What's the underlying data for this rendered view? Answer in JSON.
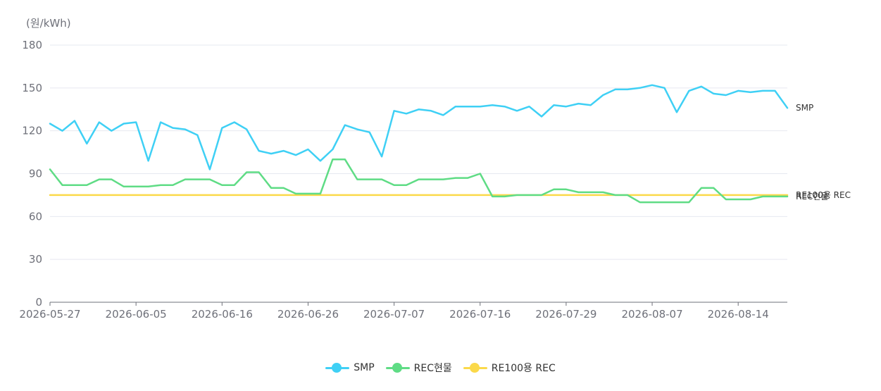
{
  "chart_data": {
    "type": "line",
    "unit_label": "(원/kWh)",
    "ylim": [
      0,
      180
    ],
    "yticks": [
      0,
      30,
      60,
      90,
      120,
      150,
      180
    ],
    "grid": true,
    "legend_position": "bottom-center",
    "x_tick_labels": [
      "2026-05-27",
      "2026-06-05",
      "2026-06-16",
      "2026-06-26",
      "2026-07-07",
      "2026-07-16",
      "2026-07-29",
      "2026-08-07",
      "2026-08-14"
    ],
    "x_tick_indices": [
      0,
      7,
      14,
      21,
      28,
      35,
      42,
      49,
      56
    ],
    "series": [
      {
        "name": "SMP",
        "color": "#3fd0f5",
        "end_label": "SMP",
        "values": [
          125,
          120,
          127,
          111,
          126,
          120,
          125,
          126,
          99,
          126,
          122,
          121,
          117,
          93,
          122,
          126,
          121,
          106,
          104,
          106,
          103,
          107,
          99,
          107,
          124,
          121,
          119,
          102,
          134,
          132,
          135,
          134,
          131,
          137,
          137,
          137,
          138,
          137,
          134,
          137,
          130,
          138,
          137,
          139,
          138,
          145,
          149,
          149,
          150,
          152,
          150,
          133,
          148,
          151,
          146,
          145,
          148,
          147,
          148,
          148,
          136
        ]
      },
      {
        "name": "REC현물",
        "color": "#5fdc85",
        "end_label": "REC현물",
        "values": [
          93,
          82,
          82,
          82,
          86,
          86,
          81,
          81,
          81,
          82,
          82,
          86,
          86,
          86,
          82,
          82,
          91,
          91,
          80,
          80,
          76,
          76,
          76,
          100,
          100,
          86,
          86,
          86,
          82,
          82,
          86,
          86,
          86,
          87,
          87,
          90,
          74,
          74,
          75,
          75,
          75,
          79,
          79,
          77,
          77,
          77,
          75,
          75,
          70,
          70,
          70,
          70,
          70,
          80,
          80,
          72,
          72,
          72,
          74,
          74,
          74
        ]
      },
      {
        "name": "RE100용 REC",
        "color": "#fbd94a",
        "end_label": "RE100용 REC",
        "values": [
          75,
          75,
          75,
          75,
          75,
          75,
          75,
          75,
          75,
          75,
          75,
          75,
          75,
          75,
          75,
          75,
          75,
          75,
          75,
          75,
          75,
          75,
          75,
          75,
          75,
          75,
          75,
          75,
          75,
          75,
          75,
          75,
          75,
          75,
          75,
          75,
          75,
          75,
          75,
          75,
          75,
          75,
          75,
          75,
          75,
          75,
          75,
          75,
          75,
          75,
          75,
          75,
          75,
          75,
          75,
          75,
          75,
          75,
          75,
          75,
          75
        ]
      }
    ]
  }
}
